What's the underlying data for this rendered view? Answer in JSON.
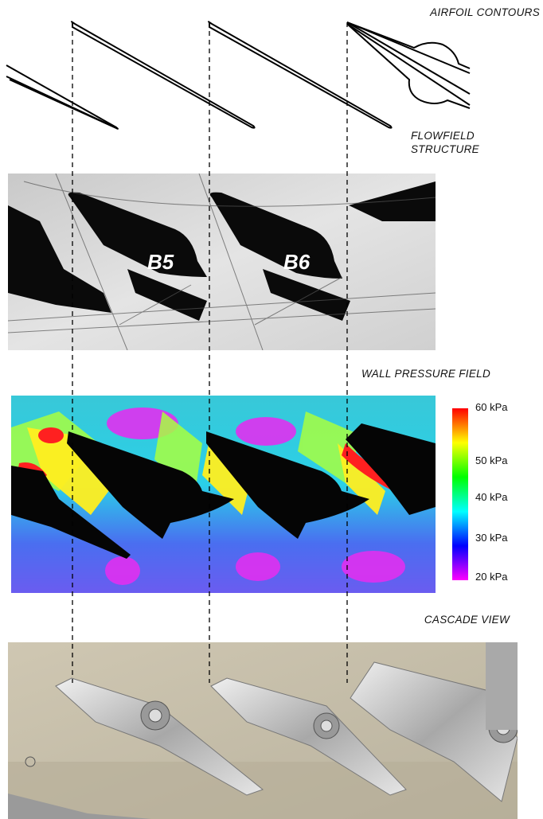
{
  "labels": {
    "airfoil": "AIRFOIL  CONTOURS",
    "flowfield_line1": "FLOWFIELD",
    "flowfield_line2": "STRUCTURE",
    "wall": "WALL  PRESSURE  FIELD",
    "cascade": "CASCADE  VIEW"
  },
  "blades": {
    "b5": "B5",
    "b6": "B6"
  },
  "colorbar": {
    "ticks": [
      "60 kPa",
      "50 kPa",
      "40 kPa",
      "30 kPa",
      "20 kPa"
    ],
    "colors": [
      "#ff0000",
      "#ffff00",
      "#00ff00",
      "#00ffff",
      "#0000ff",
      "#ff00ff"
    ]
  }
}
